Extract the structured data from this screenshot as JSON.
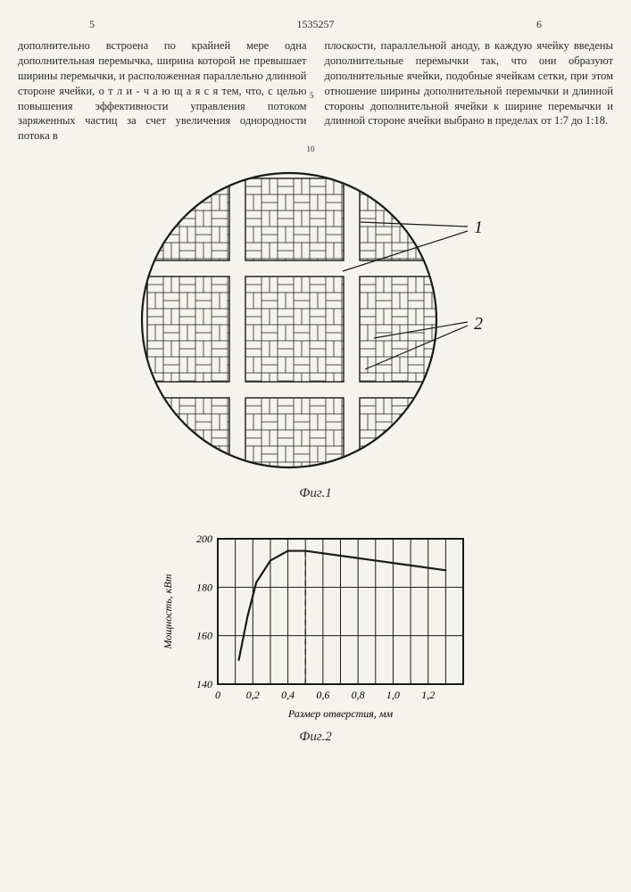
{
  "header": {
    "page_left": "5",
    "page_right": "6",
    "doc_number": "1535257"
  },
  "margin_numbers": {
    "n5": "5",
    "n10": "10"
  },
  "col_left": {
    "p": "дополнительно встроена по крайней мере одна дополнительная перемычка, ширина которой не превышает ширины перемычки, и расположенная параллельно длинной стороне ячейки, о т л и - ч а ю щ а я с я  тем, что, с целью повышения эффективности управления потоком заряженных частиц за счет увеличения однородности потока в"
  },
  "col_right": {
    "p": "плоскости, параллельной аноду, в каждую ячейку введены дополнительные перемычки так, что они образуют дополнительные ячейки, подобные ячейкам сетки, при этом отношение ширины дополнительной перемычки и длинной стороны дополнительной ячейки к ширине перемычки и длинной стороне ячейки выбрано в пределах от 1:7 до 1:18."
  },
  "fig1": {
    "caption": "Фиг.1",
    "labels": {
      "l1": "1",
      "l2": "2"
    },
    "circle_stroke": "#1a1a1a",
    "fill": "#f5f3ee",
    "grid_stroke": "#1a1a1a",
    "grid_stroke_w": 1.0,
    "thin_stroke_w": 0.5
  },
  "fig2": {
    "caption": "Фиг.2",
    "ylabel": "Мощность, кВт",
    "xlabel": "Размер отверстия, мм",
    "xlim": [
      0,
      1.4
    ],
    "ylim": [
      140,
      200
    ],
    "xticks": [
      "0",
      "0,2",
      "0,4",
      "0,6",
      "0,8",
      "1,0",
      "1,2"
    ],
    "yticks": [
      "140",
      "160",
      "180",
      "200"
    ],
    "curve_color": "#1a1a1a",
    "grid_color": "#1a1a1a",
    "bg": "#f5f3ee",
    "curve_points": [
      [
        0.12,
        150
      ],
      [
        0.17,
        168
      ],
      [
        0.22,
        182
      ],
      [
        0.3,
        191
      ],
      [
        0.4,
        195
      ],
      [
        0.5,
        195
      ],
      [
        0.7,
        193
      ],
      [
        0.9,
        191
      ],
      [
        1.1,
        189
      ],
      [
        1.3,
        187
      ]
    ],
    "dashed_x": 0.5,
    "line_w": 2.2,
    "grid_w": 1.0,
    "font_size": 12
  }
}
